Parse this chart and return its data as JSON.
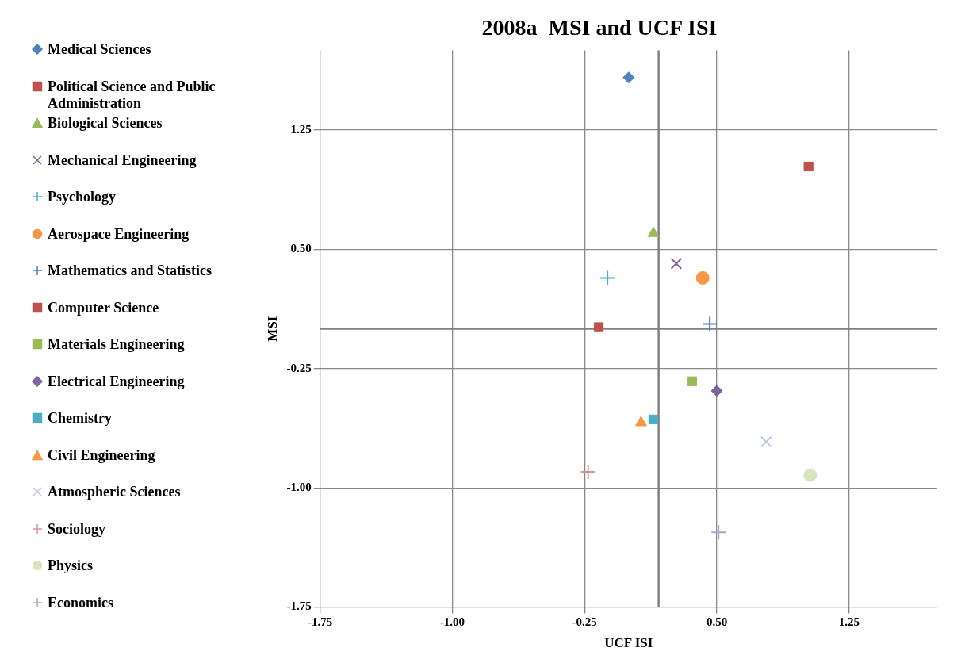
{
  "chart_data": {
    "type": "scatter",
    "title": "2008a  MSI and UCF ISI",
    "xlabel": "UCF ISI",
    "ylabel": "MSI",
    "xlim": [
      -1.75,
      1.75
    ],
    "ylim": [
      -1.75,
      1.75
    ],
    "xticks": [
      -1.75,
      {
        "value": -1,
        "label": "-1.00"
      },
      -0.25,
      {
        "value": 0.5,
        "label": "0.50"
      },
      1.25
    ],
    "yticks": [
      {
        "value": -1.75,
        "label": "-1.75"
      },
      {
        "value": -1,
        "label": "-1.00"
      },
      -0.25,
      {
        "value": 0.5,
        "label": "0.50"
      },
      1.25
    ],
    "grid": true,
    "legend": "left",
    "ref_lines": [
      {
        "axis": "y",
        "value": 0,
        "color": "#808080"
      },
      {
        "axis": "x",
        "value": 0.17,
        "color": "#808080"
      }
    ],
    "series": [
      {
        "name": "Medical Sciences",
        "color": "#4f81bd",
        "marker": "diamond",
        "x": [
          0.0
        ],
        "values": [
          1.58
        ]
      },
      {
        "name": "Political Science and Public Administration",
        "color": "#c0504d",
        "marker": "square",
        "x": [
          1.02
        ],
        "values": [
          1.02
        ]
      },
      {
        "name": "Biological Sciences",
        "color": "#9bbb59",
        "marker": "triangle",
        "x": [
          0.14
        ],
        "values": [
          0.6
        ]
      },
      {
        "name": "Mechanical Engineering",
        "color": "#8064a2",
        "marker": "x",
        "x": [
          0.27
        ],
        "values": [
          0.41
        ]
      },
      {
        "name": "Psychology",
        "color": "#4bacc6",
        "marker": "cross",
        "x": [
          -0.12
        ],
        "values": [
          0.32
        ]
      },
      {
        "name": "Aerospace Engineering",
        "color": "#f79646",
        "marker": "circle",
        "x": [
          0.42
        ],
        "values": [
          0.32
        ]
      },
      {
        "name": "Mathematics and Statistics",
        "color": "#4a7ebb",
        "marker": "cross",
        "x": [
          0.46
        ],
        "values": [
          0.03
        ]
      },
      {
        "name": "Computer Science",
        "color": "#c0504d",
        "marker": "square",
        "x": [
          -0.17
        ],
        "values": [
          0.01
        ]
      },
      {
        "name": "Materials Engineering",
        "color": "#9bbb59",
        "marker": "square",
        "x": [
          0.36
        ],
        "values": [
          -0.33
        ]
      },
      {
        "name": "Electrical Engineering",
        "color": "#8064a2",
        "marker": "diamond",
        "x": [
          0.5
        ],
        "values": [
          -0.39
        ]
      },
      {
        "name": "Chemistry",
        "color": "#4bacc6",
        "marker": "square",
        "x": [
          0.14
        ],
        "values": [
          -0.57
        ]
      },
      {
        "name": "Civil Engineering",
        "color": "#f79646",
        "marker": "triangle",
        "x": [
          0.07
        ],
        "values": [
          -0.59
        ]
      },
      {
        "name": "Atmospheric Sciences",
        "color": "#b9c7e4",
        "marker": "x",
        "x": [
          0.78
        ],
        "values": [
          -0.71
        ]
      },
      {
        "name": "Sociology",
        "color": "#d99694",
        "marker": "cross",
        "x": [
          -0.23
        ],
        "values": [
          -0.9
        ]
      },
      {
        "name": "Physics",
        "color": "#d7e4bd",
        "marker": "circle",
        "x": [
          1.03
        ],
        "values": [
          -0.92
        ]
      },
      {
        "name": "Economics",
        "color": "#b3a2c7",
        "marker": "cross",
        "x": [
          0.51
        ],
        "values": [
          -1.28
        ]
      }
    ]
  }
}
